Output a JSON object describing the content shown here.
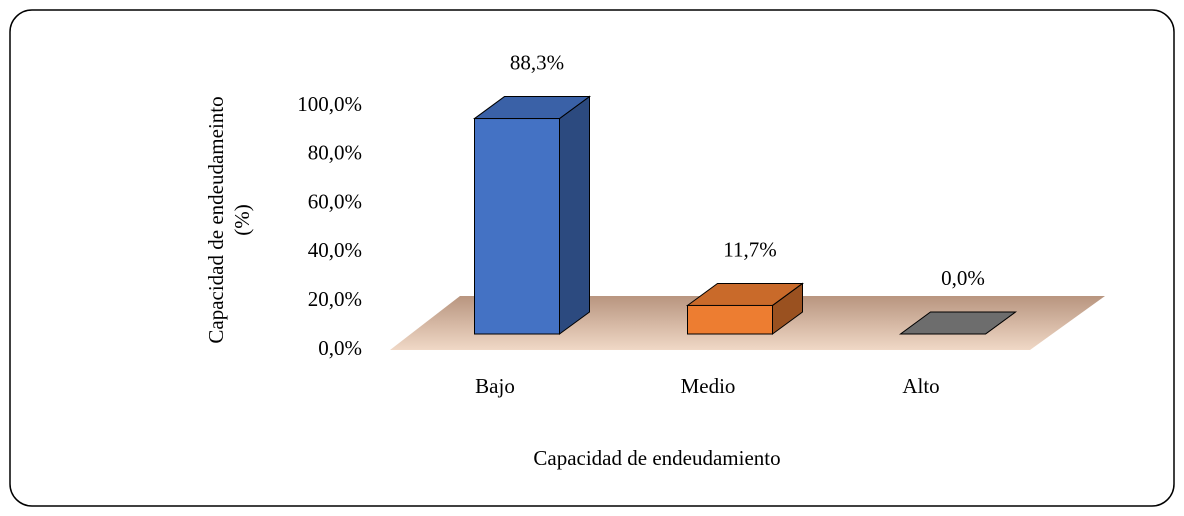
{
  "chart_data": {
    "type": "bar3d",
    "ylabel": [
      "Capacidad de endeudameinto",
      "(%)"
    ],
    "xlabel": "Capacidad de endeudamiento",
    "categories": [
      "Bajo",
      "Medio",
      "Alto"
    ],
    "values": [
      88.3,
      11.7,
      0.0
    ],
    "value_labels": [
      "88,3%",
      "11,7%",
      "0,0%"
    ],
    "colors": [
      "#4472c4",
      "#ed7d31",
      "#808080"
    ],
    "ylim": [
      0,
      100
    ],
    "yticks": [
      {
        "value": 0,
        "label": "0,0%"
      },
      {
        "value": 20,
        "label": "20,0%"
      },
      {
        "value": 40,
        "label": "40,0%"
      },
      {
        "value": 60,
        "label": "60,0%"
      },
      {
        "value": 80,
        "label": "80,0%"
      },
      {
        "value": 100,
        "label": "100,0%"
      }
    ],
    "grid": false
  }
}
